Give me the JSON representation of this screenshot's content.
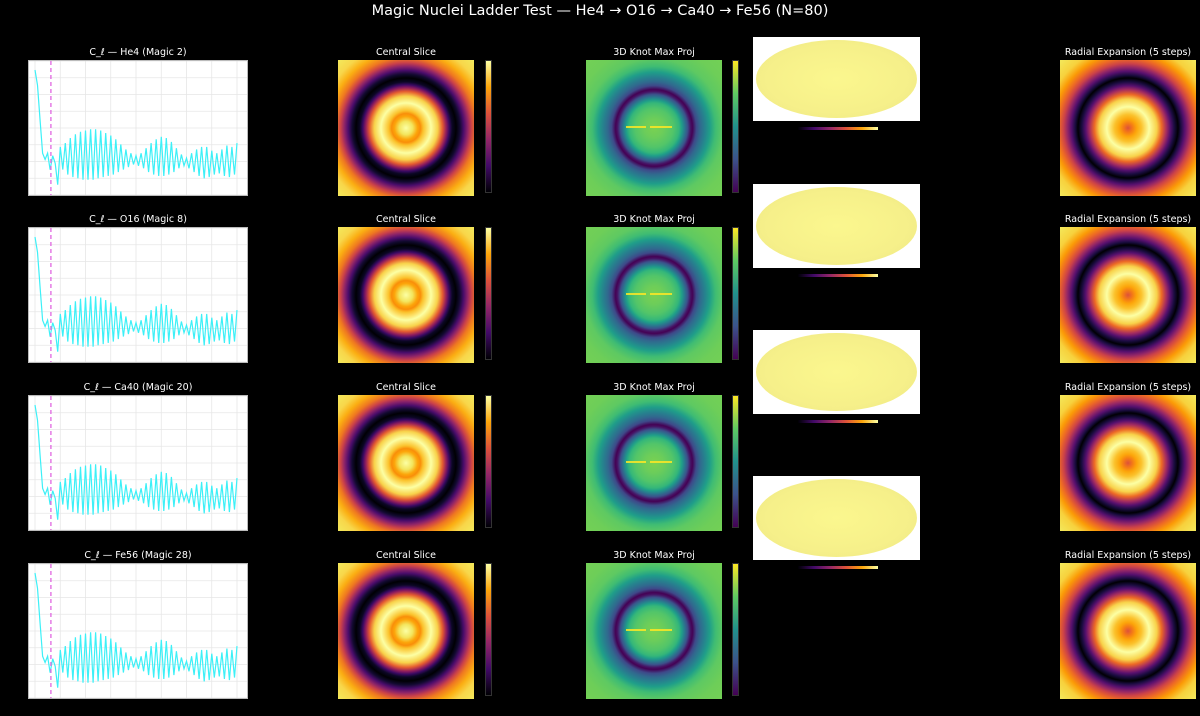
{
  "suptitle": "Magic Nuclei Ladder Test — He4 → O16 → Ca40 → Fe56 (N=80)",
  "panel_titles": {
    "slice": "Central Slice",
    "knot": "3D Knot Max Proj",
    "radial": "Radial Expansion (5 steps)"
  },
  "rows": [
    {
      "cl_title": "C_ℓ — He4 (Magic 2)",
      "nucleus": "He4",
      "magic": 2
    },
    {
      "cl_title": "C_ℓ — O16 (Magic 8)",
      "nucleus": "O16",
      "magic": 8
    },
    {
      "cl_title": "C_ℓ — Ca40 (Magic 20)",
      "nucleus": "Ca40",
      "magic": 20
    },
    {
      "cl_title": "C_ℓ — Fe56 (Magic 28)",
      "nucleus": "Fe56",
      "magic": 28
    }
  ],
  "colors": {
    "cl_line": "#3df0f7",
    "magic_marker": "#e066e0",
    "slice_cmap": "inferno",
    "knot_cmap": "viridis",
    "mollweide_fill": "#f6f08a"
  },
  "chart_data": {
    "type": "line",
    "x_range": [
      0,
      80
    ],
    "y_range": [
      0,
      1
    ],
    "grid": true,
    "magic_marker_x": 3,
    "series": [
      {
        "values": [
          0.96,
          0.84,
          0.56,
          0.3,
          0.25,
          0.3,
          0.17,
          0.28,
          0.22,
          0.05,
          0.35,
          0.17,
          0.38,
          0.13,
          0.42,
          0.11,
          0.45,
          0.1,
          0.47,
          0.09,
          0.48,
          0.09,
          0.49,
          0.09,
          0.49,
          0.1,
          0.48,
          0.11,
          0.46,
          0.12,
          0.44,
          0.13,
          0.41,
          0.15,
          0.37,
          0.17,
          0.33,
          0.19,
          0.3,
          0.21,
          0.28,
          0.2,
          0.3,
          0.18,
          0.34,
          0.15,
          0.38,
          0.13,
          0.41,
          0.12,
          0.43,
          0.12,
          0.42,
          0.13,
          0.39,
          0.15,
          0.34,
          0.18,
          0.29,
          0.2,
          0.26,
          0.18,
          0.3,
          0.15,
          0.33,
          0.12,
          0.35,
          0.1,
          0.35,
          0.11,
          0.32,
          0.13,
          0.3,
          0.14,
          0.33,
          0.12,
          0.36,
          0.11,
          0.35,
          0.13,
          0.38
        ]
      }
    ]
  }
}
